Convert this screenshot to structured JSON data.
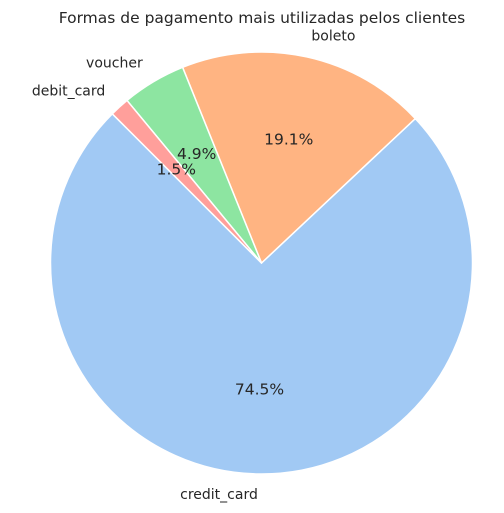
{
  "chart_data": {
    "type": "pie",
    "title": "Formas de pagamento mais utilizadas pelos clientes",
    "slices": [
      {
        "label": "credit_card",
        "value": 74.5,
        "pct_label": "74.5%",
        "color": "#a1c9f4"
      },
      {
        "label": "boleto",
        "value": 19.1,
        "pct_label": "19.1%",
        "color": "#ffb482"
      },
      {
        "label": "voucher",
        "value": 4.9,
        "pct_label": "4.9%",
        "color": "#8de5a1"
      },
      {
        "label": "debit_card",
        "value": 1.5,
        "pct_label": "1.5%",
        "color": "#ff9f9b"
      }
    ],
    "start_angle_deg": 135,
    "direction": "counterclockwise",
    "edge_color": "#ffffff"
  }
}
